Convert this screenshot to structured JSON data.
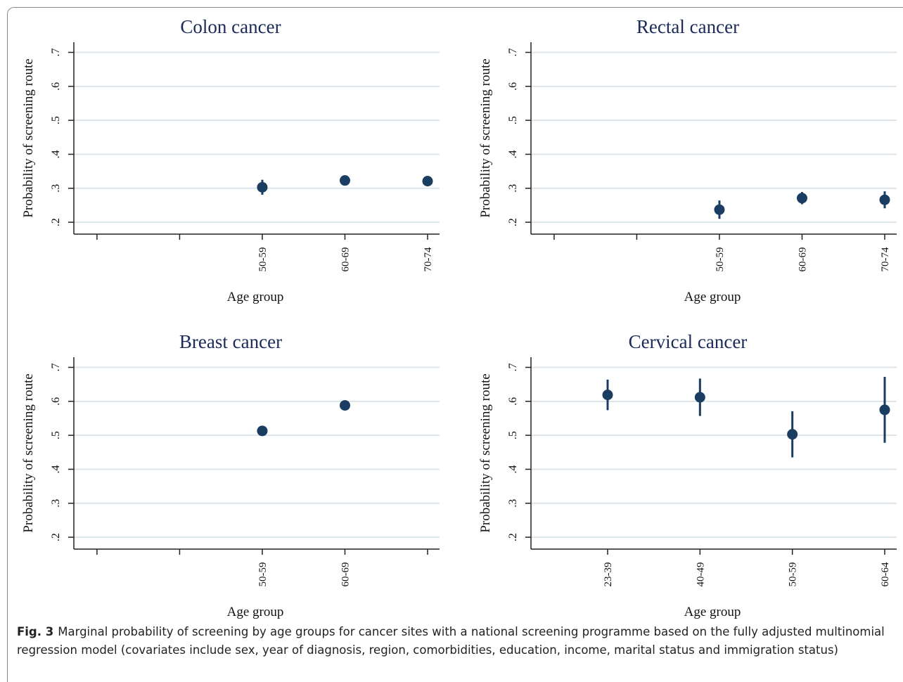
{
  "chart_data": [
    {
      "type": "errorbar",
      "title": "Colon cancer",
      "x_label": "Age group",
      "y_label": "Probability of screening route",
      "categories": [
        null,
        null,
        "50-59",
        "60-69",
        "70-74"
      ],
      "values": [
        null,
        null,
        0.303,
        0.323,
        0.321
      ],
      "errors": [
        null,
        null,
        0.022,
        0.008,
        0.01
      ],
      "color": "#1b3d61",
      "ylim": [
        0.165,
        0.73
      ],
      "yticks": [
        {
          "value": 0.2,
          "label": ".2"
        },
        {
          "value": 0.3,
          "label": ".3"
        },
        {
          "value": 0.4,
          "label": ".4"
        },
        {
          "value": 0.5,
          "label": ".5"
        },
        {
          "value": 0.6,
          "label": ".6"
        },
        {
          "value": 0.7,
          "label": ".7"
        }
      ],
      "grid": true
    },
    {
      "type": "errorbar",
      "title": "Rectal cancer",
      "x_label": "Age group",
      "y_label": "Probability of screening route",
      "categories": [
        null,
        null,
        "50-59",
        "60-69",
        "70-74"
      ],
      "values": [
        null,
        null,
        0.237,
        0.271,
        0.266
      ],
      "errors": [
        null,
        null,
        0.027,
        0.018,
        0.025
      ],
      "color": "#1b3d61",
      "ylim": [
        0.165,
        0.73
      ],
      "yticks": [
        {
          "value": 0.2,
          "label": ".2"
        },
        {
          "value": 0.3,
          "label": ".3"
        },
        {
          "value": 0.4,
          "label": ".4"
        },
        {
          "value": 0.5,
          "label": ".5"
        },
        {
          "value": 0.6,
          "label": ".6"
        },
        {
          "value": 0.7,
          "label": ".7"
        }
      ],
      "grid": true
    },
    {
      "type": "errorbar",
      "title": "Breast cancer",
      "x_label": "Age group",
      "y_label": "Probability of screening route",
      "categories": [
        null,
        null,
        "50-59",
        "60-69",
        null
      ],
      "values": [
        null,
        null,
        0.513,
        0.588,
        null
      ],
      "errors": [
        null,
        null,
        0.01,
        0.006,
        null
      ],
      "color": "#1b3d61",
      "ylim": [
        0.165,
        0.73
      ],
      "yticks": [
        {
          "value": 0.2,
          "label": ".2"
        },
        {
          "value": 0.3,
          "label": ".3"
        },
        {
          "value": 0.4,
          "label": ".4"
        },
        {
          "value": 0.5,
          "label": ".5"
        },
        {
          "value": 0.6,
          "label": ".6"
        },
        {
          "value": 0.7,
          "label": ".7"
        }
      ],
      "grid": true
    },
    {
      "type": "errorbar",
      "title": "Cervical cancer",
      "x_label": "Age group",
      "y_label": "Probability of screening route",
      "categories": [
        "23-39",
        "40-49",
        "50-59",
        "60-64"
      ],
      "values": [
        0.619,
        0.612,
        0.503,
        0.575
      ],
      "errors": [
        0.045,
        0.055,
        0.068,
        0.097
      ],
      "color": "#1b3d61",
      "ylim": [
        0.165,
        0.73
      ],
      "yticks": [
        {
          "value": 0.2,
          "label": ".2"
        },
        {
          "value": 0.3,
          "label": ".3"
        },
        {
          "value": 0.4,
          "label": ".4"
        },
        {
          "value": 0.5,
          "label": ".5"
        },
        {
          "value": 0.6,
          "label": ".6"
        },
        {
          "value": 0.7,
          "label": ".7"
        }
      ],
      "grid": true
    }
  ],
  "caption": {
    "label": "Fig. 3",
    "text": "Marginal probability of screening by age groups for cancer sites with a national screening programme based on the fully adjusted multinomial regression model (covariates include sex, year of diagnosis, region, comorbidities, education, income, marital status and immigration status)"
  }
}
